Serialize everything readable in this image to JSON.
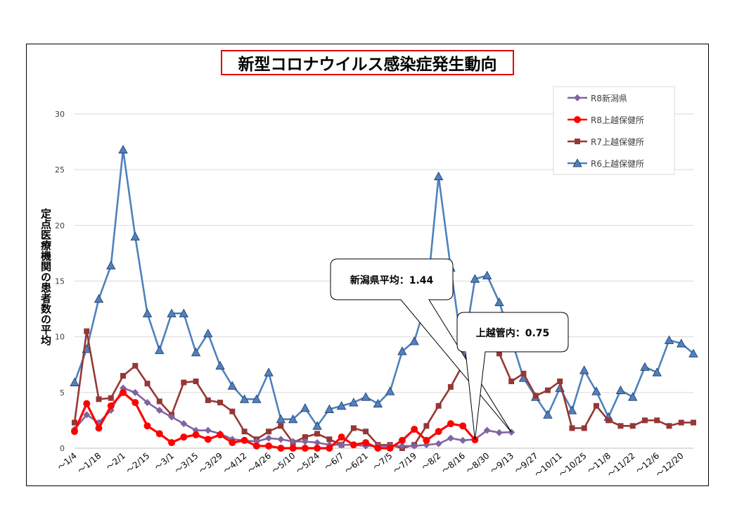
{
  "chart_data": {
    "type": "line",
    "title": "新型コロナウイルス感染症発生動向",
    "ylabel": "定点医療機関の患者数の平均",
    "ylim": [
      0,
      30
    ],
    "yticks": [
      0,
      5,
      10,
      15,
      20,
      25,
      30
    ],
    "grid": true,
    "legend_position": "top-right",
    "x_tick_labels": [
      "～1/4",
      "～1/18",
      "～2/1",
      "～2/15",
      "～3/1",
      "～3/15",
      "～3/29",
      "～4/12",
      "～4/26",
      "～5/10",
      "～5/24",
      "～6/7",
      "～6/21",
      "～7/5",
      "～7/19",
      "～8/2",
      "～8/16",
      "～8/30",
      "～9/13",
      "～9/27",
      "～10/11",
      "～10/25",
      "～11/8",
      "～11/22",
      "～12/6",
      "～12/20"
    ],
    "series": [
      {
        "name": "R8新潟県",
        "color": "#8064a2",
        "marker": "diamond",
        "values": [
          1.7,
          3.0,
          2.3,
          3.4,
          5.4,
          5.0,
          4.1,
          3.4,
          2.8,
          2.2,
          1.6,
          1.6,
          1.3,
          0.8,
          0.7,
          0.6,
          0.9,
          0.8,
          0.6,
          0.6,
          0.5,
          0.3,
          0.3,
          0.3,
          0.2,
          0.2,
          0.2,
          0.2,
          0.2,
          0.3,
          0.4,
          0.9,
          0.7,
          0.8,
          1.6,
          1.4,
          1.44
        ]
      },
      {
        "name": "R8上越保健所",
        "color": "#ff0000",
        "marker": "circle",
        "values": [
          1.5,
          4.0,
          1.8,
          3.8,
          5.0,
          4.1,
          2.0,
          1.3,
          0.5,
          1.0,
          1.2,
          0.8,
          1.2,
          0.5,
          0.7,
          0.2,
          0.2,
          0.0,
          0.0,
          0.0,
          0.0,
          0.0,
          1.0,
          0.3,
          0.5,
          0.0,
          0.0,
          0.7,
          1.7,
          0.7,
          1.5,
          2.2,
          2.0,
          0.75
        ]
      },
      {
        "name": "R7上越保健所",
        "color": "#953735",
        "marker": "square",
        "values": [
          2.3,
          10.5,
          4.4,
          4.5,
          6.5,
          7.4,
          5.8,
          4.2,
          3.0,
          5.9,
          6.0,
          4.3,
          4.1,
          3.3,
          1.5,
          0.8,
          1.5,
          2.0,
          0.5,
          1.0,
          1.3,
          0.8,
          0.3,
          1.8,
          1.5,
          0.3,
          0.3,
          0.0,
          0.3,
          2.0,
          3.8,
          5.5,
          7.5,
          10.5,
          10.5,
          8.5,
          6.0,
          6.7,
          4.7,
          5.2,
          6.0,
          1.8,
          1.8,
          3.8,
          2.5,
          2.0,
          2.0,
          2.5,
          2.5,
          2.0,
          2.3,
          2.3
        ]
      },
      {
        "name": "R6上越保健所",
        "color": "#4f81bd",
        "marker": "triangle",
        "values": [
          5.9,
          8.9,
          13.4,
          16.4,
          26.8,
          19.0,
          12.1,
          8.8,
          12.1,
          12.1,
          8.6,
          10.3,
          7.4,
          5.6,
          4.4,
          4.4,
          6.8,
          2.6,
          2.6,
          3.6,
          2.0,
          3.5,
          3.8,
          4.1,
          4.6,
          4.0,
          5.1,
          8.7,
          9.6,
          13.2,
          24.4,
          16.2,
          8.4,
          15.2,
          15.5,
          13.1,
          9.8,
          6.3,
          4.6,
          3.0,
          5.4,
          3.4,
          7.0,
          5.1,
          2.8,
          5.2,
          4.6,
          7.3,
          6.8,
          9.7,
          9.4,
          8.5
        ]
      }
    ],
    "annotations": [
      {
        "label": "新潟県平均：1.44",
        "series": "R8新潟県"
      },
      {
        "label": "上越管内：0.75",
        "series": "R8上越保健所"
      }
    ]
  }
}
